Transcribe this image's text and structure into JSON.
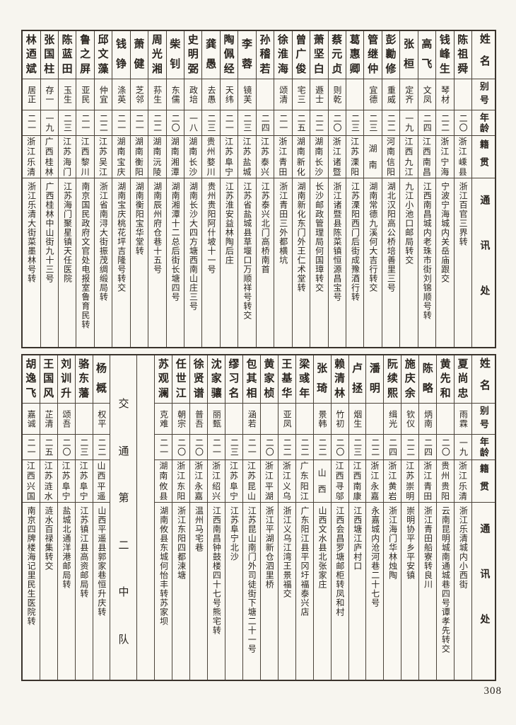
{
  "page": {
    "number": "308"
  },
  "headers": {
    "name": "姓名",
    "alias": "别号",
    "age": "年龄",
    "native": "籍贯",
    "contact": "通讯处"
  },
  "top_table": {
    "columns": [
      {
        "name": "陈祖舜",
        "alias": "",
        "age": "二〇",
        "native": "浙江嵊县",
        "contact": "浙江百官三界转"
      },
      {
        "name": "钱峰生",
        "alias": "琴材",
        "age": "二二",
        "native": "浙江宁海",
        "contact": "宁波宁海城内关岳庙跟交"
      },
      {
        "name": "高飞",
        "alias": "文凤",
        "age": "二四",
        "native": "江西南昌",
        "contact": "江西南昌城内老珠市街刘锦顺号转"
      },
      {
        "name": "张桓",
        "alias": "定齐",
        "age": "一九",
        "native": "江西九江",
        "contact": "九江小池口邮局转交"
      },
      {
        "name": "彭勷修",
        "alias": "重威",
        "age": "二二",
        "native": "河南信阳",
        "contact": "湖北汉阳高公桥培善里三号"
      },
      {
        "name": "管继仲",
        "alias": "宜德",
        "age": "二三",
        "native": "湖南",
        "contact": "湖南常德九溪何大吉行转交"
      },
      {
        "name": "葛惠卿",
        "alias": "",
        "age": "二三",
        "native": "江苏溧阳",
        "contact": "江苏溧阳西门后街成豫酒行转"
      },
      {
        "name": "蔡元贞",
        "alias": "则乾",
        "age": "二〇",
        "native": "浙江诸暨",
        "contact": "浙江诸暨县陈菜镇恒源昌宝号"
      },
      {
        "name": "萧坚白",
        "alias": "遯士",
        "age": "二二",
        "native": "湖南长沙",
        "contact": "长沙邮政管理局何国璋转交"
      },
      {
        "name": "曾广俊",
        "alias": "宅三",
        "age": "二五",
        "native": "湖南新化",
        "contact": "湖南新化东门外王仁术堂转"
      },
      {
        "name": "徐淮海",
        "alias": "颂清",
        "age": "二一",
        "native": "浙江青田",
        "contact": "浙江青田三外都横坑"
      },
      {
        "name": "孙稽若",
        "alias": "",
        "age": "二四",
        "native": "江苏泰兴",
        "contact": "江苏泰兴北门高桥南首"
      },
      {
        "name": "李蓉",
        "alias": "镜芙",
        "age": "二三",
        "native": "江苏盐城",
        "contact": "江苏省盐城县草堰口万顺祥号转交"
      },
      {
        "name": "陶佩经",
        "alias": "天纬",
        "age": "二一",
        "native": "江苏阜宁",
        "contact": "江苏淮安益林陶后庄"
      },
      {
        "name": "龚愚",
        "alias": "去愚",
        "age": "二三",
        "native": "贵州婺川",
        "contact": "贵州贵阳阿什坡十一号"
      },
      {
        "name": "史明弼",
        "alias": "政培",
        "age": "一八",
        "native": "湖南长沙",
        "contact": "湖南长沙大四方塘西南山庄三号"
      },
      {
        "name": "柴钊",
        "alias": "东儒",
        "age": "二〇",
        "native": "湖南湘潭",
        "contact": "湖南湘潭十二总后街长塘四号"
      },
      {
        "name": "周光湘",
        "alias": "荪生",
        "age": "二二",
        "native": "湖南沅陵",
        "contact": "湖南辰州府仓巷十五号"
      },
      {
        "name": "萧健",
        "alias": "芝邻",
        "age": "二一",
        "native": "湖南衡阳",
        "contact": "湖南衡阳宝华堂转"
      },
      {
        "name": "钱铮",
        "alias": "涤英",
        "age": "二一",
        "native": "湖南宝庆",
        "contact": "湖南宝庆桃花坪吉隆号转交"
      },
      {
        "name": "邱文藻",
        "alias": "仲宜",
        "age": "二二",
        "native": "江苏吴江",
        "contact": "浙江省南浔大街振茂绸缎局转"
      },
      {
        "name": "鲁之屏",
        "alias": "亚民",
        "age": "二一",
        "native": "江西黎川",
        "contact": "南京国民政府文官处电报室鲁育民转"
      },
      {
        "name": "陈蓝田",
        "alias": "玉生",
        "age": "二三",
        "native": "江苏海门",
        "contact": "江苏海门聚星镇天任医院"
      },
      {
        "name": "张国柱",
        "alias": "存一",
        "age": "一九",
        "native": "广西桂林",
        "contact": "广西桂林中山街九十三号"
      },
      {
        "name": "林迺斌",
        "alias": "居正",
        "age": "二一",
        "native": "浙江乐清",
        "contact": "浙江乐清大街菜墨林号转"
      }
    ]
  },
  "bottom_table": {
    "columns": [
      {
        "name": "夏尚忠",
        "alias": "雨霖",
        "age": "一九",
        "native": "浙江乐清",
        "contact": "浙江乐清城内小西街"
      },
      {
        "name": "黄先和",
        "alias": "",
        "age": "二〇",
        "native": "贵州贵阳",
        "contact": "云南昆明城南通城巷四号谭孝先转交"
      },
      {
        "name": "陈略",
        "alias": "炳南",
        "age": "二四",
        "native": "浙江青田",
        "contact": "浙江青田船寮转良川"
      },
      {
        "name": "施庆余",
        "alias": "钦仪",
        "age": "二二",
        "native": "江苏崇明",
        "contact": "崇明协平乡平安镇"
      },
      {
        "name": "阮续熙",
        "alias": "缉光",
        "age": "二四",
        "native": "浙江黄岩",
        "contact": "浙江海门华林烛陶"
      },
      {
        "name": "潘明",
        "alias": "",
        "age": "二二",
        "native": "浙江永嘉",
        "contact": "永嘉城内沧河巷二十七号"
      },
      {
        "name": "卢拯",
        "alias": "烟生",
        "age": "二三",
        "native": "江西南康",
        "contact": "江西塘江庐村口"
      },
      {
        "name": "赖清林",
        "alias": "竹初",
        "age": "二〇",
        "native": "江西寻邬",
        "contact": "江西会昌罗塘邮柜转凤和村"
      },
      {
        "name": "张琦",
        "alias": "景韩",
        "age": "二二",
        "native": "山西",
        "contact": "山西文水县北张家庄"
      },
      {
        "name": "梁彧年",
        "alias": "",
        "age": "二二",
        "native": "广东阳江",
        "contact": "广东阳江县平冈圩福泰兴店"
      },
      {
        "name": "王基华",
        "alias": "亚凤",
        "age": "二二",
        "native": "浙江义乌",
        "contact": "浙江义乌江湾王景福交"
      },
      {
        "name": "黄家桢",
        "alias": "",
        "age": "二〇",
        "native": "浙江平湖",
        "contact": "浙江平湖新仓泗里桥"
      },
      {
        "name": "包其相",
        "alias": "涵若",
        "age": "二一",
        "native": "江苏昆山",
        "contact": "江苏昆山南门外司徒街下塘二十一号"
      },
      {
        "name": "缪习名",
        "alias": "",
        "age": "二三",
        "native": "江苏阜宁",
        "contact": "江苏阜宁北沙"
      },
      {
        "name": "沈家骧",
        "alias": "丽甄",
        "age": "二一",
        "native": "浙江绍兴",
        "contact": "江西南昌钟鼓楼四十七号熊宅转"
      },
      {
        "name": "徐贤谱",
        "alias": "普吾",
        "age": "二〇",
        "native": "浙江永嘉",
        "contact": "温州马宅巷"
      },
      {
        "name": "任世江",
        "alias": "朝宗",
        "age": "二〇",
        "native": "浙江东阳",
        "contact": "浙江东阳四都涑塘"
      },
      {
        "name": "苏观澜",
        "alias": "克难",
        "age": "二一",
        "native": "湖南攸县",
        "contact": "湖南攸县东城何怡丰转苏家坝"
      },
      {
        "type": "empty"
      },
      {
        "type": "section",
        "label": "交通第二中队"
      },
      {
        "name": "杨概",
        "alias": "权平",
        "age": "二二",
        "native": "山西平遥",
        "contact": "山西平遥县郭家巷恒升庆转"
      },
      {
        "name": "骆东藩",
        "alias": "",
        "age": "二三",
        "native": "江苏阜宁",
        "contact": "江苏镇江县高资邮局转"
      },
      {
        "name": "刘训升",
        "alias": "颂吾",
        "age": "二〇",
        "native": "江苏阜宁",
        "contact": "盐城北通洋港邮局转"
      },
      {
        "name": "王国风",
        "alias": "芷清",
        "age": "二五",
        "native": "江苏涟水",
        "contact": "涟水百禄集转交"
      },
      {
        "name": "胡逸飞",
        "alias": "嘉诚",
        "age": "二一",
        "native": "江西兴国",
        "contact": "南京四牌楼海记里民生医院转"
      }
    ]
  }
}
